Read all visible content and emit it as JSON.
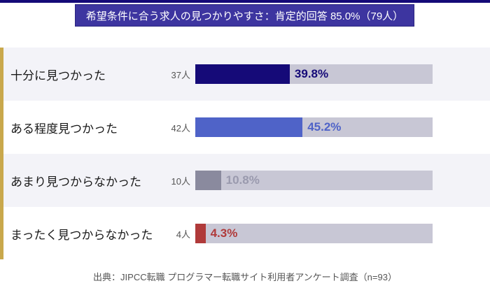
{
  "title": "希望条件に合う求人の見つかりやすさ：肯定的回答 85.0%（79人）",
  "chart_data": {
    "type": "bar",
    "orientation": "horizontal",
    "categories": [
      "十分に見つかった",
      "ある程度見つかった",
      "あまり見つからなかった",
      "まったく見つからなかった"
    ],
    "counts": [
      "37人",
      "42人",
      "10人",
      "4人"
    ],
    "values": [
      39.8,
      45.2,
      10.8,
      4.3
    ],
    "value_labels": [
      "39.8%",
      "45.2%",
      "10.8%",
      "4.3%"
    ],
    "colors": [
      "#150a78",
      "#4f63c8",
      "#8a8a9e",
      "#b03a3a"
    ],
    "label_colors": [
      "#150a78",
      "#4f63c8",
      "#9a9aae",
      "#b03a3a"
    ],
    "xlim": [
      0,
      100
    ]
  },
  "source": "出典：JIPCC転職 プログラマー転職サイト利用者アンケート調査（n=93）"
}
